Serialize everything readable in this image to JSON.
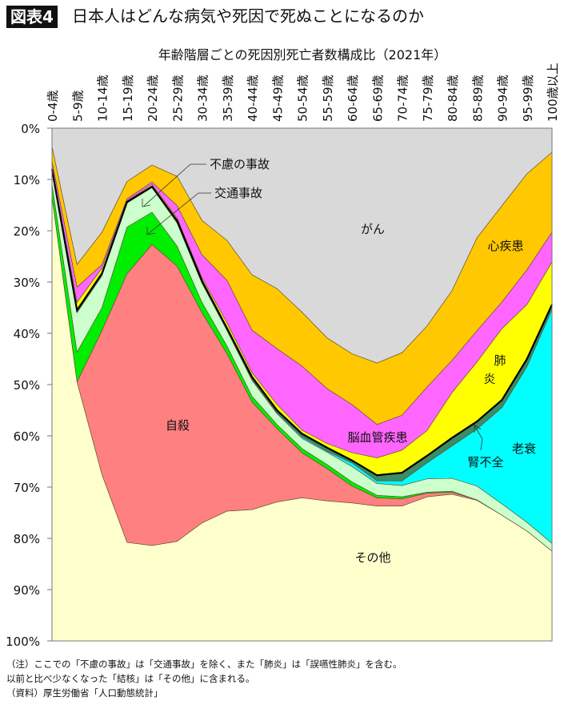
{
  "header": {
    "badge": "図表4",
    "title": "日本人はどんな病気や死因で死ぬことになるのか"
  },
  "chart_data": {
    "type": "area",
    "stacked": true,
    "title": "年齢階層ごとの死因別死亡者数構成比（2021年）",
    "categories": [
      "0-4歳",
      "5-9歳",
      "10-14歳",
      "15-19歳",
      "20-24歳",
      "25-29歳",
      "30-34歳",
      "35-39歳",
      "40-44歳",
      "45-49歳",
      "50-54歳",
      "55-59歳",
      "60-64歳",
      "65-69歳",
      "70-74歳",
      "75-79歳",
      "80-84歳",
      "85-89歳",
      "90-94歳",
      "95-99歳",
      "100歳以上"
    ],
    "y_axis": {
      "min": 0,
      "max": 100,
      "reversed": true,
      "ticks": [
        "0%",
        "10%",
        "20%",
        "30%",
        "40%",
        "50%",
        "60%",
        "70%",
        "80%",
        "90%",
        "100%"
      ]
    },
    "x_axis_position": "top",
    "grid": false,
    "legend": "inline labels",
    "series": [
      {
        "name": "がん",
        "color": "#d9d9d9",
        "values": [
          3.6,
          26.6,
          20.3,
          10.4,
          7.2,
          9.4,
          18,
          21.9,
          28.6,
          31.3,
          35.9,
          40.9,
          44,
          45.8,
          43.8,
          38.6,
          31.7,
          21.4,
          15.1,
          8.9,
          4.7
        ]
      },
      {
        "name": "心疾患",
        "color": "#ffc800",
        "values": [
          2.9,
          4.4,
          6.3,
          3.4,
          3.3,
          5.7,
          6.7,
          7.8,
          10.8,
          11.7,
          10.5,
          9.9,
          9.9,
          12,
          12.2,
          11.9,
          13.6,
          18.1,
          18.8,
          18.7,
          15.6
        ]
      },
      {
        "name": "脳血管疾患",
        "color": "#ff66ff",
        "values": [
          1.0,
          3.0,
          0.7,
          0.4,
          0.5,
          2.4,
          4.5,
          8.3,
          8.3,
          10.9,
          12.5,
          10.7,
          9.4,
          6.5,
          6.8,
          8.5,
          6.3,
          6.1,
          5.2,
          6.8,
          5.8
        ]
      },
      {
        "name": "肺炎",
        "color": "#ffff00",
        "values": [
          0.5,
          1.5,
          1.0,
          0.2,
          0.4,
          0.5,
          0.6,
          1.0,
          0.8,
          1.1,
          0.7,
          0.8,
          1.5,
          3.4,
          4.4,
          4.9,
          8.8,
          11.6,
          13.9,
          10.6,
          8.3
        ]
      },
      {
        "name": "腎不全",
        "color": "#3c8c64",
        "values": [
          0.5,
          0.5,
          0.5,
          0.2,
          0.2,
          0.5,
          0.5,
          0.5,
          0.5,
          0.5,
          0.6,
          0.7,
          0.5,
          1.1,
          1.6,
          1.4,
          1.6,
          1.5,
          1.5,
          1.5,
          1.0
        ]
      },
      {
        "name": "老衰",
        "color": "#00ffff",
        "values": [
          0,
          0,
          0,
          0,
          0,
          0,
          0,
          0,
          0.2,
          0.2,
          0.3,
          0.2,
          0.7,
          0.5,
          0.9,
          3.1,
          6.3,
          11.1,
          18.8,
          30.4,
          45.6
        ]
      },
      {
        "name": "不慮の事故",
        "color": "#ccffcc",
        "values": [
          2.5,
          7.7,
          6.2,
          4.7,
          4.8,
          4.5,
          3.7,
          3.0,
          3.1,
          2.1,
          2.0,
          2.4,
          3.0,
          2.3,
          2.2,
          2.6,
          2.5,
          2.7,
          2.2,
          1.7,
          1.5
        ]
      },
      {
        "name": "交通事故",
        "color": "#00ee00",
        "values": [
          2.5,
          5.8,
          4.5,
          9.1,
          6.3,
          3.9,
          2.0,
          1.5,
          1.1,
          0.8,
          0.8,
          0.8,
          0.8,
          0.5,
          0.4,
          0.2,
          0.2,
          0,
          0,
          0,
          0
        ]
      },
      {
        "name": "自殺",
        "color": "#ff8080",
        "values": [
          0,
          0,
          28.1,
          52.4,
          58.7,
          53.7,
          41,
          30.7,
          21,
          14.3,
          8.8,
          6.3,
          3.3,
          1.6,
          1.4,
          0.7,
          0.4,
          0.1,
          0,
          0,
          0
        ]
      },
      {
        "name": "その他",
        "color": "#ffffcc",
        "values": [
          86.5,
          50.5,
          32.4,
          19.2,
          18.6,
          19.4,
          23,
          25.3,
          25.6,
          27.1,
          27.9,
          27.3,
          26.9,
          26.3,
          26.3,
          28.1,
          28.6,
          27.4,
          24.5,
          21.4,
          17.5
        ]
      }
    ],
    "annotations": {
      "gan": "がん",
      "shinshikkan": "心疾患",
      "noukekkan": "脳血管疾患",
      "haien_1": "肺",
      "haien_2": "炎",
      "jinfuzen": "腎不全",
      "rousui": "老衰",
      "jisatsu": "自殺",
      "sonota": "その他",
      "furyo": "不慮の事故",
      "koutsuu": "交通事故"
    }
  },
  "notes": {
    "line1": "（注）ここでの「不慮の事故」は「交通事故」を除く、また「肺炎」は「誤嚥性肺炎」を含む。",
    "line2": "以前と比べ少なくなった「結核」は「その他」に含まれる。",
    "line3": "（資料）厚生労働省「人口動態統計」"
  }
}
